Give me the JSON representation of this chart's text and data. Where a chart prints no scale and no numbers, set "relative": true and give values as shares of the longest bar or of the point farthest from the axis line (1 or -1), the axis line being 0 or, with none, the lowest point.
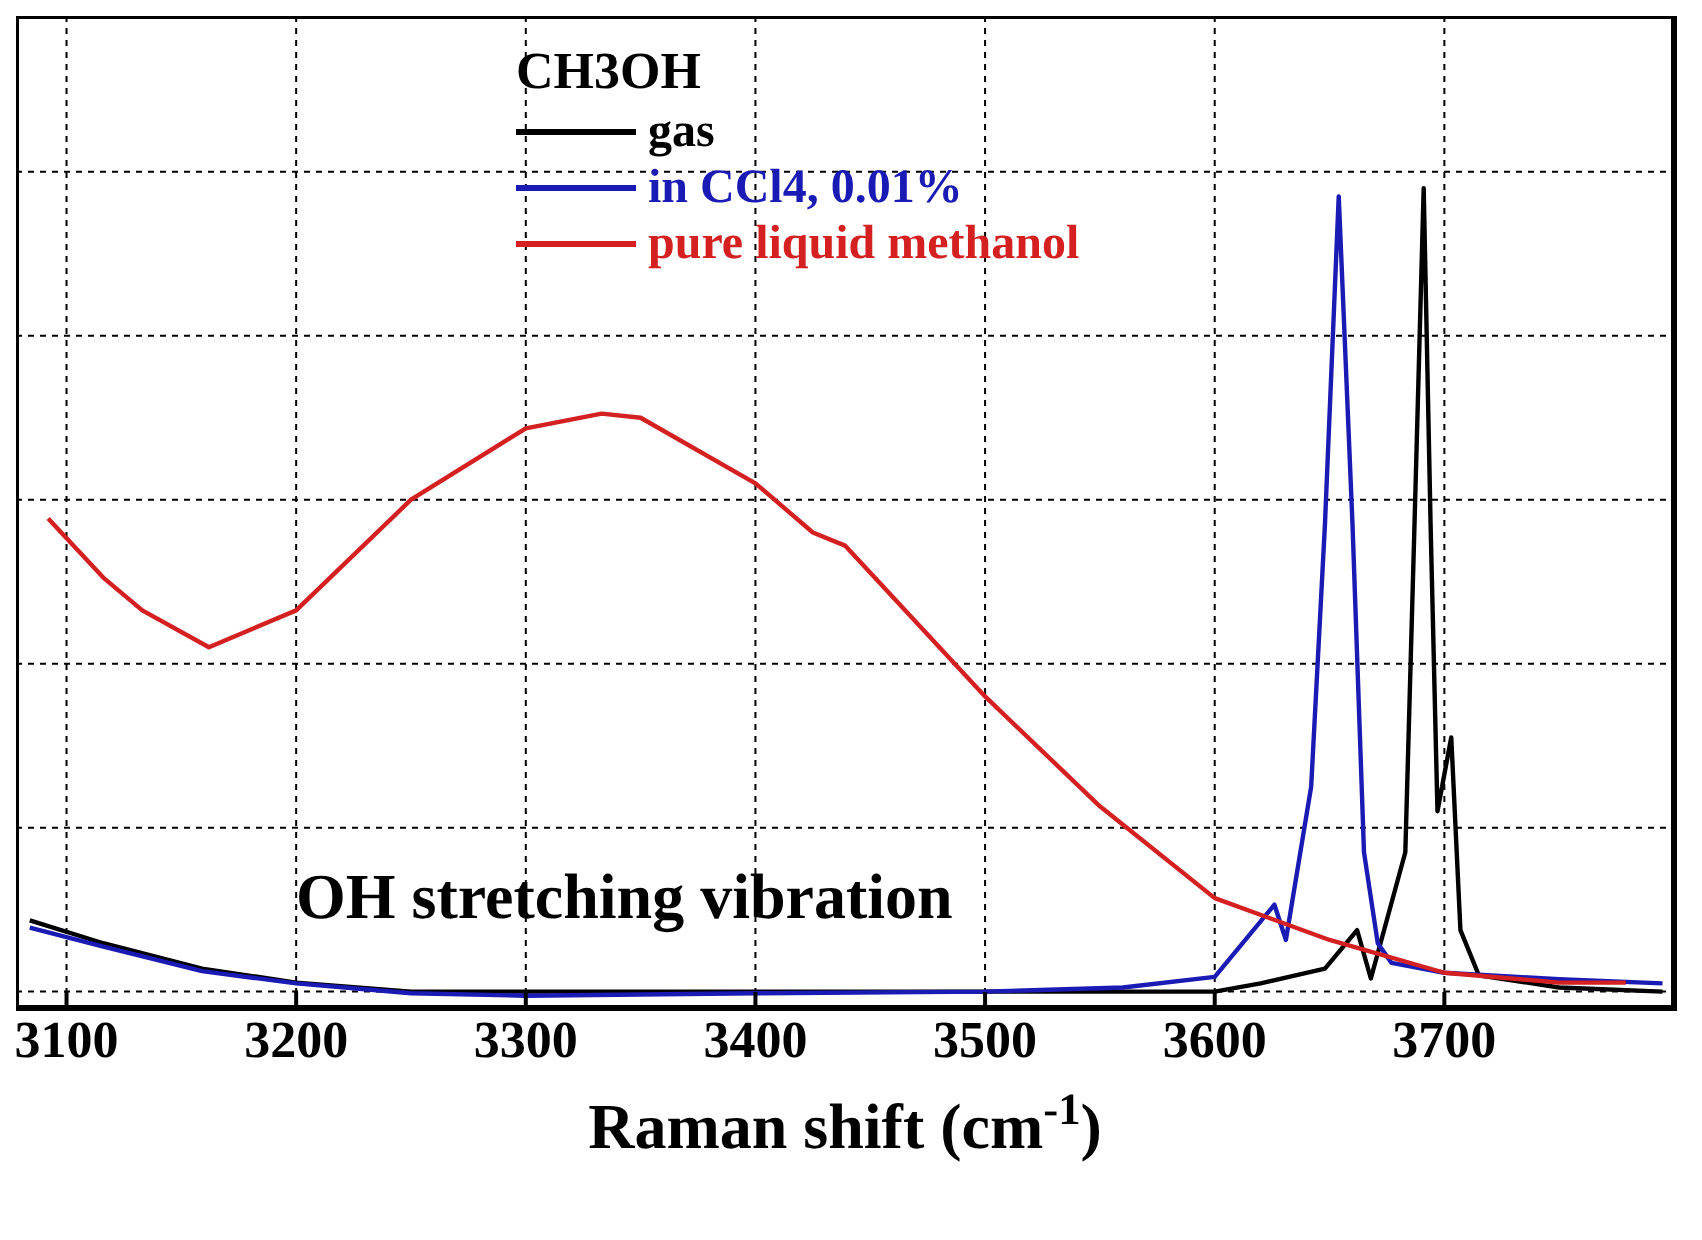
{
  "chart_data": {
    "type": "line",
    "relative": true,
    "xlabel": "Raman shift (cm$^{-1}$)",
    "legend_title": "CH3OH",
    "legend": "top",
    "grid": true,
    "marker": "none",
    "line_style": "solid",
    "xlim": [
      3078,
      3800
    ],
    "xticks": [
      3100,
      3200,
      3300,
      3400,
      3500,
      3600,
      3700
    ],
    "annotations": [
      "OH stretching vibration"
    ],
    "series": [
      {
        "name": "gas",
        "color": "#000000",
        "x": [
          3084,
          3116,
          3159,
          3200,
          3250,
          3300,
          3400,
          3500,
          3560,
          3600,
          3620,
          3648,
          3662,
          3668,
          3683,
          3687,
          3691,
          3694,
          3697,
          3703,
          3707,
          3715,
          3750,
          3795
        ],
        "values": [
          0.107,
          0.079,
          0.048,
          0.031,
          0.02,
          0.02,
          0.02,
          0.02,
          0.02,
          0.02,
          0.03,
          0.048,
          0.095,
          0.036,
          0.19,
          0.59,
          1.0,
          0.59,
          0.24,
          0.33,
          0.095,
          0.04,
          0.025,
          0.02
        ]
      },
      {
        "name": "in CCl4, 0.01%",
        "color": "#1a1ab4",
        "x": [
          3084,
          3116,
          3159,
          3200,
          3250,
          3300,
          3400,
          3500,
          3560,
          3600,
          3626,
          3631,
          3642,
          3648,
          3654,
          3660,
          3665,
          3671,
          3677,
          3700,
          3750,
          3795
        ],
        "values": [
          0.098,
          0.075,
          0.045,
          0.03,
          0.018,
          0.015,
          0.018,
          0.02,
          0.025,
          0.038,
          0.126,
          0.083,
          0.27,
          0.59,
          0.99,
          0.59,
          0.19,
          0.079,
          0.055,
          0.043,
          0.035,
          0.03
        ]
      },
      {
        "name": "pure liquid methanol",
        "color": "#d42020",
        "x": [
          3092,
          3116,
          3133,
          3162,
          3200,
          3250,
          3300,
          3333,
          3350,
          3400,
          3425,
          3439,
          3500,
          3550,
          3600,
          3650,
          3700,
          3750,
          3779
        ],
        "values": [
          0.597,
          0.525,
          0.485,
          0.44,
          0.485,
          0.62,
          0.707,
          0.725,
          0.72,
          0.64,
          0.58,
          0.564,
          0.38,
          0.246,
          0.134,
          0.083,
          0.043,
          0.031,
          0.031
        ]
      }
    ]
  }
}
